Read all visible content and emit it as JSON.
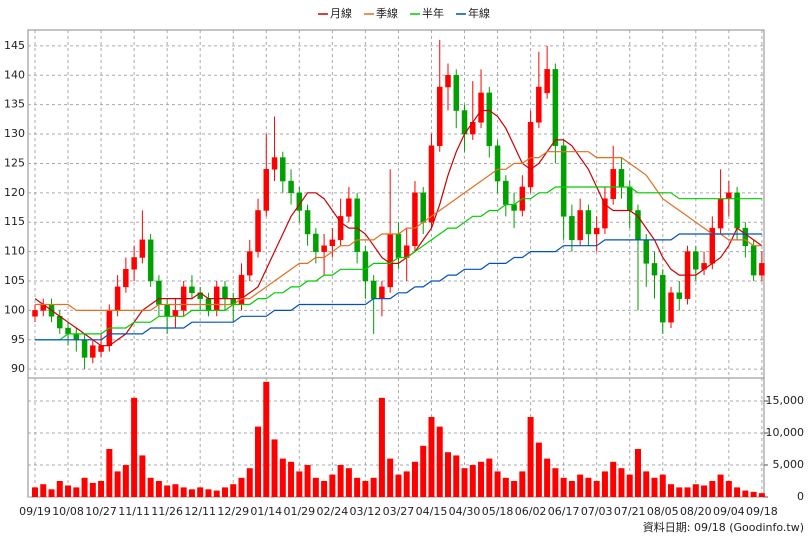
{
  "chart_data": {
    "type": "candlestick",
    "categories": [
      "09/19",
      null,
      null,
      null,
      "10/08",
      null,
      null,
      null,
      "10/27",
      null,
      null,
      null,
      "11/11",
      null,
      null,
      null,
      "11/26",
      null,
      null,
      null,
      "12/11",
      null,
      null,
      null,
      "12/29",
      null,
      null,
      null,
      "01/14",
      null,
      null,
      null,
      "01/29",
      null,
      null,
      null,
      "02/24",
      null,
      null,
      null,
      "03/12",
      null,
      null,
      null,
      "03/27",
      null,
      null,
      null,
      "04/15",
      null,
      null,
      null,
      "04/30",
      null,
      null,
      null,
      "05/18",
      null,
      null,
      null,
      "06/02",
      null,
      null,
      null,
      "06/17",
      null,
      null,
      null,
      "07/03",
      null,
      null,
      null,
      "07/21",
      null,
      null,
      null,
      "08/05",
      null,
      null,
      null,
      "08/20",
      null,
      null,
      null,
      "09/04",
      null,
      null,
      null,
      "09/18"
    ],
    "open": [
      99,
      100,
      101,
      99,
      97,
      96,
      95,
      92,
      93,
      94,
      100,
      104,
      107,
      109,
      112,
      105,
      101,
      99,
      100,
      104,
      103,
      102,
      100,
      104,
      102,
      101,
      106,
      110,
      117,
      124,
      126,
      122,
      120,
      117,
      113,
      110,
      111,
      112,
      116,
      119,
      110,
      105,
      102,
      104,
      113,
      109,
      111,
      120,
      115,
      128,
      138,
      140,
      134,
      130,
      132,
      137,
      128,
      122,
      118,
      117,
      121,
      132,
      137,
      141,
      128,
      116,
      112,
      117,
      113,
      114,
      119,
      124,
      121,
      117,
      112,
      108,
      106,
      98,
      103,
      102,
      110,
      107,
      108,
      114,
      119,
      120,
      114,
      111,
      106
    ],
    "high": [
      101,
      102,
      102,
      100,
      98,
      97,
      96,
      95,
      96,
      101,
      106,
      109,
      111,
      117,
      113,
      106,
      102,
      102,
      105,
      106,
      104,
      103,
      105,
      105,
      103,
      108,
      112,
      119,
      130,
      133,
      127,
      124,
      121,
      118,
      114,
      113,
      114,
      119,
      121,
      120,
      111,
      106,
      105,
      124,
      115,
      114,
      122,
      121,
      130,
      146,
      142,
      141,
      135,
      139,
      141,
      138,
      129,
      123,
      120,
      123,
      134,
      144,
      145,
      142,
      129,
      118,
      119,
      118,
      116,
      121,
      128,
      126,
      122,
      118,
      113,
      110,
      107,
      104,
      105,
      111,
      111,
      110,
      116,
      124,
      122,
      121,
      115,
      112,
      110
    ],
    "low": [
      98,
      99,
      98,
      96,
      94,
      93,
      90,
      91,
      92,
      93,
      99,
      103,
      105,
      108,
      104,
      99,
      96,
      97,
      99,
      102,
      100,
      99,
      99,
      100,
      98,
      100,
      105,
      109,
      116,
      122,
      120,
      118,
      115,
      111,
      108,
      106,
      109,
      111,
      115,
      108,
      102,
      96,
      99,
      103,
      107,
      105,
      110,
      113,
      114,
      127,
      134,
      131,
      127,
      129,
      131,
      126,
      120,
      116,
      114,
      116,
      120,
      131,
      136,
      125,
      112,
      110,
      111,
      111,
      110,
      113,
      118,
      119,
      114,
      100,
      104,
      102,
      96,
      97,
      100,
      101,
      105,
      106,
      107,
      113,
      116,
      112,
      109,
      105,
      105
    ],
    "close": [
      100,
      101,
      99,
      97,
      96,
      95,
      92,
      94,
      94,
      100,
      104,
      107,
      109,
      112,
      105,
      101,
      99,
      100,
      104,
      103,
      102,
      100,
      104,
      102,
      101,
      106,
      110,
      117,
      124,
      126,
      122,
      120,
      117,
      113,
      110,
      111,
      112,
      116,
      119,
      110,
      105,
      102,
      104,
      113,
      109,
      111,
      120,
      115,
      128,
      138,
      140,
      134,
      130,
      132,
      137,
      128,
      122,
      118,
      117,
      121,
      132,
      138,
      141,
      128,
      116,
      112,
      117,
      113,
      114,
      119,
      124,
      121,
      117,
      112,
      108,
      106,
      98,
      103,
      102,
      110,
      107,
      108,
      114,
      119,
      120,
      114,
      111,
      106,
      108
    ],
    "ylim": [
      88.5,
      147.7
    ],
    "yticks": [
      90,
      95,
      100,
      105,
      110,
      115,
      120,
      125,
      130,
      135,
      140,
      145
    ],
    "grid": true,
    "up_color": "#ff0000",
    "down_color": "#00a000",
    "series": [
      {
        "name": "月線",
        "color": "#cc0000",
        "values": [
          102,
          101,
          100,
          99,
          98,
          97,
          96,
          95,
          94,
          94,
          95,
          96,
          98,
          100,
          101,
          102,
          102,
          102,
          102,
          102,
          103,
          102,
          102,
          102,
          102,
          102,
          103,
          104,
          107,
          110,
          113,
          116,
          118,
          120,
          120,
          119,
          117,
          115,
          114,
          114,
          113,
          111,
          109,
          108,
          108,
          109,
          110,
          112,
          114,
          118,
          123,
          127,
          130,
          132,
          134,
          134,
          133,
          131,
          128,
          125,
          124,
          125,
          127,
          129,
          129,
          128,
          126,
          124,
          121,
          118,
          117,
          117,
          117,
          116,
          114,
          112,
          109,
          107,
          106,
          106,
          106,
          107,
          108,
          109,
          111,
          114,
          113,
          112,
          111
        ]
      },
      {
        "name": "季線",
        "color": "#e07020",
        "values": [
          101,
          101,
          101,
          101,
          101,
          100,
          100,
          100,
          100,
          100,
          100,
          100,
          100,
          100,
          100,
          101,
          101,
          101,
          101,
          101,
          101,
          101,
          101,
          101,
          101,
          102,
          102,
          103,
          104,
          105,
          106,
          107,
          108,
          108,
          109,
          109,
          110,
          111,
          111,
          112,
          112,
          112,
          113,
          113,
          113,
          114,
          114,
          115,
          116,
          117,
          118,
          119,
          120,
          121,
          122,
          123,
          124,
          124,
          125,
          125,
          126,
          126,
          127,
          127,
          127,
          127,
          127,
          127,
          126,
          126,
          126,
          126,
          125,
          124,
          123,
          121,
          119,
          118,
          117,
          116,
          115,
          114,
          113,
          113,
          112,
          112,
          112,
          111,
          111
        ]
      },
      {
        "name": "半年",
        "color": "#00cc00",
        "values": [
          95,
          95,
          95,
          95,
          96,
          96,
          96,
          96,
          96,
          97,
          97,
          97,
          98,
          98,
          98,
          99,
          99,
          99,
          99,
          100,
          100,
          100,
          100,
          100,
          101,
          101,
          101,
          102,
          102,
          103,
          103,
          104,
          104,
          105,
          105,
          106,
          106,
          107,
          107,
          107,
          107,
          108,
          108,
          108,
          109,
          109,
          110,
          111,
          112,
          113,
          114,
          114,
          115,
          116,
          116,
          117,
          117,
          118,
          118,
          119,
          119,
          120,
          120,
          121,
          121,
          121,
          121,
          121,
          121,
          121,
          121,
          121,
          121,
          120,
          120,
          120,
          120,
          120,
          119,
          119,
          119,
          119,
          119,
          119,
          119,
          119,
          119,
          119,
          119
        ]
      },
      {
        "name": "年線",
        "color": "#0050c0",
        "values": [
          95,
          95,
          95,
          95,
          95,
          95,
          95,
          95,
          95,
          96,
          96,
          96,
          96,
          96,
          97,
          97,
          97,
          97,
          97,
          98,
          98,
          98,
          98,
          98,
          98,
          99,
          99,
          99,
          99,
          100,
          100,
          100,
          101,
          101,
          101,
          101,
          101,
          101,
          101,
          101,
          101,
          102,
          102,
          102,
          103,
          103,
          104,
          104,
          105,
          105,
          106,
          106,
          107,
          107,
          107,
          108,
          108,
          108,
          109,
          109,
          110,
          110,
          110,
          110,
          111,
          111,
          111,
          111,
          111,
          112,
          112,
          112,
          112,
          112,
          112,
          112,
          112,
          112,
          113,
          113,
          113,
          113,
          113,
          113,
          113,
          113,
          113,
          113,
          113
        ]
      }
    ],
    "volume": {
      "color": "#ff0000",
      "ylim": [
        0,
        18600
      ],
      "yticks": [
        0,
        {
          "value": 5000,
          "label": "5,000"
        },
        {
          "value": 10000,
          "label": "10,000"
        },
        {
          "value": 15000,
          "label": "15,000"
        }
      ],
      "values": [
        1500,
        2000,
        1200,
        2500,
        1800,
        1500,
        3000,
        2200,
        2500,
        7500,
        4000,
        5000,
        15500,
        6500,
        3000,
        2500,
        1800,
        2000,
        1500,
        1200,
        1500,
        1200,
        1000,
        1500,
        2000,
        3000,
        4500,
        11000,
        18000,
        9000,
        6000,
        5500,
        4000,
        5000,
        3000,
        2500,
        3500,
        5000,
        4500,
        3000,
        2500,
        3000,
        15500,
        6000,
        3500,
        4000,
        5500,
        8000,
        12500,
        11000,
        7000,
        6500,
        4500,
        5000,
        5500,
        6000,
        4000,
        3000,
        2500,
        4000,
        12500,
        8500,
        6000,
        4500,
        3000,
        2500,
        3500,
        3000,
        2500,
        4000,
        5500,
        4500,
        3500,
        7500,
        4000,
        3000,
        3500,
        2000,
        1500,
        1500,
        2000,
        1800,
        2500,
        3500,
        2500,
        1500,
        1000,
        800,
        600
      ]
    },
    "source": "資料日期: 09/18 (Goodinfo.tw)"
  }
}
